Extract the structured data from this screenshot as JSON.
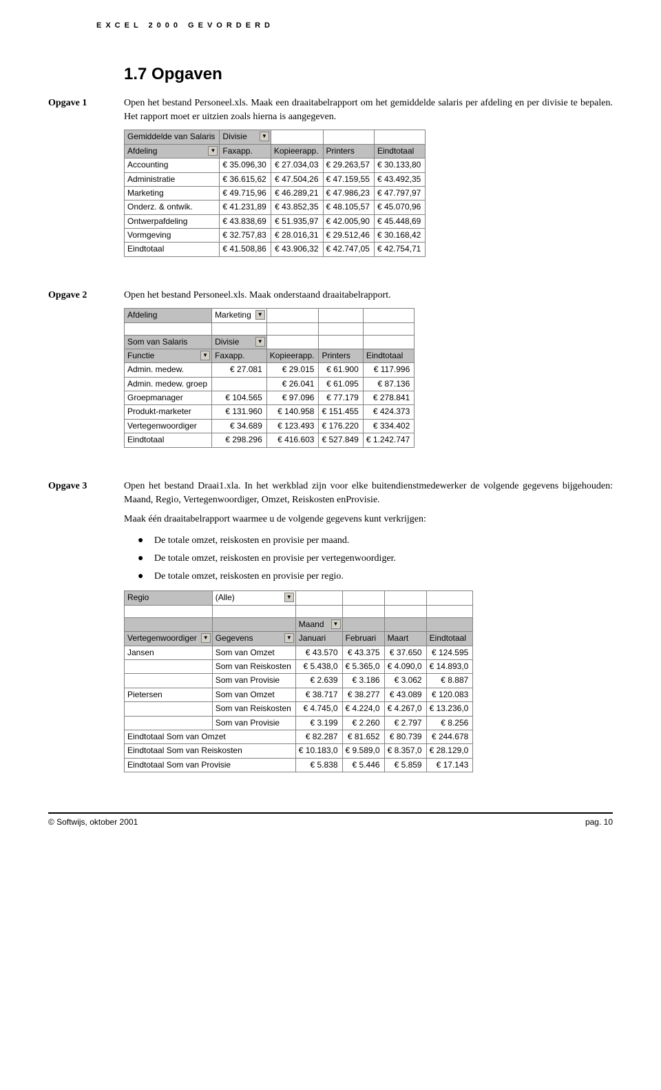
{
  "header": "EXCEL 2000 GEVORDERD",
  "section_title": "1.7 Opgaven",
  "opgave1": {
    "label": "Opgave 1",
    "text": "Open het bestand Personeel.xls. Maak een draaitabelrapport om het gemiddelde salaris per afdeling en per divisie te bepalen. Het rapport moet er uitzien zoals hierna is aangegeven."
  },
  "table1": {
    "top_left": "Gemiddelde van Salaris",
    "col_field": "Divisie",
    "row_field": "Afdeling",
    "columns": [
      "Faxapp.",
      "Kopieerapp.",
      "Printers",
      "Eindtotaal"
    ],
    "rows": [
      [
        "Accounting",
        "€   35.096,30",
        "€   27.034,03",
        "€   29.263,57",
        "€   30.133,80"
      ],
      [
        "Administratie",
        "€   36.615,62",
        "€   47.504,26",
        "€   47.159,55",
        "€   43.492,35"
      ],
      [
        "Marketing",
        "€   49.715,96",
        "€   46.289,21",
        "€   47.986,23",
        "€   47.797,97"
      ],
      [
        "Onderz. & ontwik.",
        "€   41.231,89",
        "€   43.852,35",
        "€   48.105,57",
        "€   45.070,96"
      ],
      [
        "Ontwerpafdeling",
        "€   43.838,69",
        "€   51.935,97",
        "€   42.005,90",
        "€   45.448,69"
      ],
      [
        "Vormgeving",
        "€   32.757,83",
        "€   28.016,31",
        "€   29.512,46",
        "€   30.168,42"
      ],
      [
        "Eindtotaal",
        "€   41.508,86",
        "€   43.906,32",
        "€   42.747,05",
        "€   42.754,71"
      ]
    ]
  },
  "opgave2": {
    "label": "Opgave 2",
    "text": "Open het bestand Personeel.xls. Maak onderstaand draaitabelrapport."
  },
  "table2": {
    "page_field": "Afdeling",
    "page_value": "Marketing",
    "top_left": "Som van Salaris",
    "col_field": "Divisie",
    "row_field": "Functie",
    "columns": [
      "Faxapp.",
      "Kopieerapp.",
      "Printers",
      "Eindtotaal"
    ],
    "rows": [
      [
        "Admin. medew.",
        "€       27.081",
        "€       29.015",
        "€       61.900",
        "€     117.996"
      ],
      [
        "Admin. medew. groep",
        "",
        "€       26.041",
        "€       61.095",
        "€       87.136"
      ],
      [
        "Groepmanager",
        "€     104.565",
        "€       97.096",
        "€       77.179",
        "€     278.841"
      ],
      [
        "Produkt-marketer",
        "€     131.960",
        "€     140.958",
        "€     151.455",
        "€     424.373"
      ],
      [
        "Vertegenwoordiger",
        "€       34.689",
        "€     123.493",
        "€     176.220",
        "€     334.402"
      ],
      [
        "Eindtotaal",
        "€     298.296",
        "€     416.603",
        "€     527.849",
        "€  1.242.747"
      ]
    ]
  },
  "opgave3": {
    "label": "Opgave 3",
    "text1": "Open het bestand Draai1.xla. In het werkblad zijn voor elke buitendienstmedewerker de volgende gegevens bijgehouden: Maand, Regio, Vertegenwoordiger, Omzet, Reiskosten enProvisie.",
    "text2": "Maak één draaitabelrapport waarmee u de volgende gegevens kunt verkrijgen:",
    "bullets": [
      "De totale omzet, reiskosten en provisie per maand.",
      "De totale omzet, reiskosten en provisie per vertegenwoordiger.",
      "De totale omzet, reiskosten en provisie per regio."
    ]
  },
  "table3": {
    "page_field": "Regio",
    "page_value": "(Alle)",
    "col_field": "Maand",
    "row_field1": "Vertegenwoordiger",
    "row_field2": "Gegevens",
    "columns": [
      "Januari",
      "Februari",
      "Maart",
      "Eindtotaal"
    ],
    "rep1": "Jansen",
    "rep1_rows": [
      [
        "Som van Omzet",
        "€    43.570",
        "€  43.375",
        "€  37.650",
        "€  124.595"
      ],
      [
        "Som van Reiskosten",
        "€    5.438,0",
        "€  5.365,0",
        "€  4.090,0",
        "€  14.893,0"
      ],
      [
        "Som van Provisie",
        "€       2.639",
        "€    3.186",
        "€    3.062",
        "€      8.887"
      ]
    ],
    "rep2": "Pietersen",
    "rep2_rows": [
      [
        "Som van Omzet",
        "€    38.717",
        "€  38.277",
        "€  43.089",
        "€  120.083"
      ],
      [
        "Som van Reiskosten",
        "€    4.745,0",
        "€  4.224,0",
        "€  4.267,0",
        "€  13.236,0"
      ],
      [
        "Som van Provisie",
        "€       3.199",
        "€    2.260",
        "€    2.797",
        "€      8.256"
      ]
    ],
    "totals": [
      [
        "Eindtotaal Som van Omzet",
        "€    82.287",
        "€  81.652",
        "€  80.739",
        "€  244.678"
      ],
      [
        "Eindtotaal Som van Reiskosten",
        "€  10.183,0",
        "€  9.589,0",
        "€  8.357,0",
        "€  28.129,0"
      ],
      [
        "Eindtotaal Som van Provisie",
        "€       5.838",
        "€    5.446",
        "€    5.859",
        "€    17.143"
      ]
    ]
  },
  "footer": {
    "left": "© Softwijs, oktober 2001",
    "right": "pag. 10"
  }
}
